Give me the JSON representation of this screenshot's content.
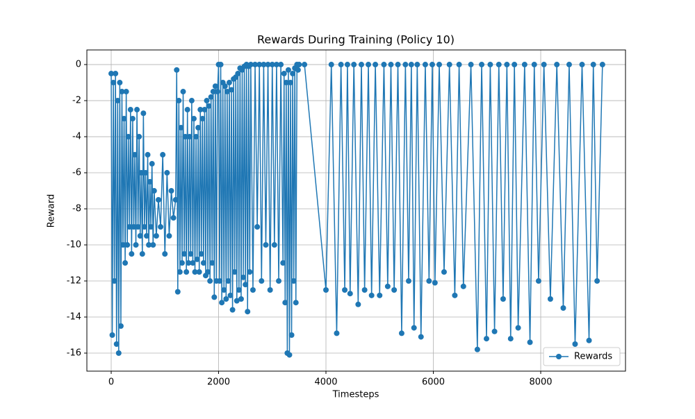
{
  "chart_data": {
    "type": "line",
    "title": "Rewards During Training (Policy 10)",
    "x_label": "Timesteps",
    "y_label": "Reward",
    "x": [
      0,
      20,
      40,
      60,
      80,
      100,
      120,
      140,
      160,
      180,
      200,
      220,
      240,
      260,
      280,
      300,
      320,
      340,
      360,
      380,
      400,
      420,
      440,
      460,
      480,
      500,
      520,
      540,
      560,
      580,
      600,
      620,
      640,
      660,
      680,
      700,
      720,
      740,
      760,
      780,
      800,
      840,
      880,
      920,
      960,
      1000,
      1040,
      1080,
      1120,
      1160,
      1200,
      1220,
      1240,
      1260,
      1280,
      1300,
      1320,
      1340,
      1360,
      1380,
      1400,
      1420,
      1440,
      1460,
      1480,
      1500,
      1520,
      1540,
      1560,
      1580,
      1600,
      1620,
      1640,
      1660,
      1680,
      1700,
      1720,
      1740,
      1760,
      1780,
      1800,
      1820,
      1840,
      1860,
      1880,
      1900,
      1920,
      1940,
      1960,
      1980,
      2000,
      2020,
      2040,
      2060,
      2080,
      2100,
      2120,
      2140,
      2160,
      2180,
      2200,
      2220,
      2240,
      2260,
      2280,
      2300,
      2320,
      2340,
      2360,
      2380,
      2400,
      2420,
      2440,
      2460,
      2480,
      2500,
      2520,
      2540,
      2560,
      2580,
      2600,
      2640,
      2680,
      2720,
      2760,
      2800,
      2840,
      2880,
      2920,
      2960,
      3000,
      3040,
      3080,
      3120,
      3160,
      3200,
      3220,
      3240,
      3260,
      3280,
      3300,
      3320,
      3340,
      3360,
      3380,
      3400,
      3420,
      3440,
      3460,
      3480,
      3500,
      3600,
      4000,
      4100,
      4200,
      4280,
      4350,
      4400,
      4450,
      4520,
      4600,
      4660,
      4720,
      4790,
      4850,
      4920,
      5000,
      5080,
      5150,
      5210,
      5270,
      5340,
      5410,
      5480,
      5540,
      5590,
      5640,
      5700,
      5770,
      5850,
      5920,
      5980,
      6030,
      6110,
      6200,
      6300,
      6400,
      6480,
      6560,
      6700,
      6820,
      6900,
      6990,
      7060,
      7140,
      7220,
      7300,
      7370,
      7440,
      7510,
      7580,
      7700,
      7800,
      7880,
      7960,
      8060,
      8180,
      8300,
      8420,
      8530,
      8640,
      8770,
      8900,
      8980,
      9050,
      9150
    ],
    "series": [
      {
        "name": "Rewards",
        "color": "#1f77b4",
        "values": [
          -0.5,
          -15,
          -1,
          -12,
          -0.5,
          -15.5,
          -2,
          -16,
          -1,
          -14.5,
          -1.5,
          -10,
          -3,
          -11,
          -1.5,
          -10,
          -4,
          -9,
          -2.5,
          -10.5,
          -3,
          -9,
          -5,
          -10,
          -2.5,
          -9,
          -4,
          -9.5,
          -6,
          -10.5,
          -2.7,
          -9,
          -6,
          -9.5,
          -5,
          -10,
          -6.5,
          -9,
          -5.5,
          -10,
          -7,
          -9.5,
          -7.5,
          -9,
          -5,
          -10.5,
          -6,
          -9.5,
          -7,
          -8.5,
          -7.5,
          -0.3,
          -12.6,
          -2,
          -11.5,
          -3.5,
          -11,
          -1.5,
          -10.5,
          -4,
          -11.5,
          -2.5,
          -11,
          -4,
          -10.5,
          -2,
          -11,
          -3,
          -11.5,
          -4,
          -10.8,
          -3.5,
          -11.5,
          -2.5,
          -10.5,
          -3,
          -11,
          -2.5,
          -11.7,
          -2,
          -11.5,
          -2.3,
          -12,
          -1.8,
          -11,
          -1.5,
          -12.9,
          -1.2,
          -12,
          -1.5,
          0,
          -12,
          0,
          -13.2,
          -1,
          -12.5,
          -1.2,
          -13,
          -1.5,
          -12,
          -1,
          -12.8,
          -1.4,
          -13.6,
          -0.8,
          -11.5,
          -0.7,
          -13.1,
          -0.5,
          -12.5,
          -0.2,
          -13,
          -0.3,
          -11.8,
          -0.1,
          -12.2,
          0,
          -13.7,
          -0.1,
          -11.5,
          0,
          -12.5,
          0,
          -9,
          0,
          -12,
          0,
          -10,
          0,
          -12.5,
          0,
          -10,
          0,
          -12,
          0,
          -11,
          -0.5,
          -13.2,
          -1,
          -16,
          -0.3,
          -16.1,
          -1,
          -15,
          -0.5,
          -12,
          -0.2,
          -13.2,
          0,
          -0.3,
          0,
          0,
          -12.5,
          0,
          -14.9,
          0,
          -12.5,
          0,
          -12.7,
          0,
          -13.3,
          0,
          -12.5,
          0,
          -12.8,
          0,
          -12.8,
          0,
          -12.3,
          0,
          -12.5,
          0,
          -14.9,
          0,
          -12.0,
          0,
          -14.6,
          0,
          -15.1,
          0,
          -12.0,
          0,
          -12.1,
          0,
          -11.5,
          0,
          -12.8,
          0,
          -12.3,
          0,
          -15.8,
          0,
          -15.2,
          0,
          -14.8,
          0,
          -13.0,
          0,
          -15.2,
          0,
          -14.6,
          0,
          -15.4,
          0,
          -12.0,
          0,
          -13.0,
          0,
          -13.5,
          0,
          -15.5,
          0,
          -15.3,
          0,
          -12.0,
          0
        ]
      }
    ],
    "xlim": [
      -453,
      9579
    ],
    "ylim": [
      -17.0,
      0.81
    ],
    "xticks": [
      0,
      2000,
      4000,
      6000,
      8000
    ],
    "yticks": [
      0,
      -2,
      -4,
      -6,
      -8,
      -10,
      -12,
      -14,
      -16
    ],
    "grid": true,
    "legend": "lower right"
  }
}
